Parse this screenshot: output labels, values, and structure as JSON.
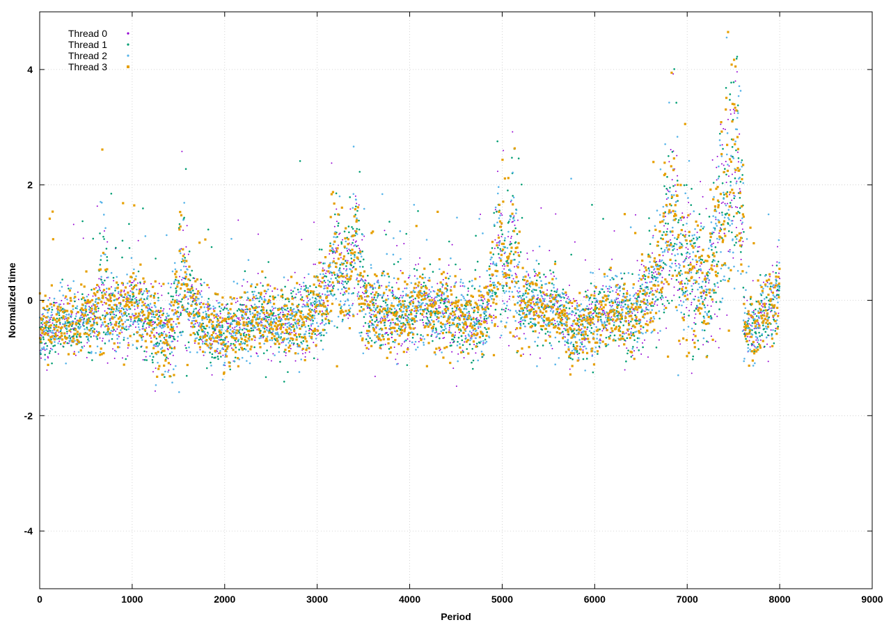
{
  "chart_data": {
    "type": "scatter",
    "xlabel": "Period",
    "ylabel": "Normalized time",
    "xlim": [
      0,
      9000
    ],
    "ylim": [
      -5,
      5
    ],
    "x_ticks": [
      0,
      1000,
      2000,
      3000,
      4000,
      5000,
      6000,
      7000,
      8000,
      9000
    ],
    "y_ticks": [
      -4,
      -2,
      0,
      2,
      4
    ],
    "grid": true,
    "legend_position": "top-left",
    "point_style": "dots",
    "series": [
      {
        "name": "Thread 0",
        "color": "#9400d3",
        "marker": "plus"
      },
      {
        "name": "Thread 1",
        "color": "#009e73",
        "marker": "cross"
      },
      {
        "name": "Thread 2",
        "color": "#56b4e9",
        "marker": "star"
      },
      {
        "name": "Thread 3",
        "color": "#e69f00",
        "marker": "square"
      }
    ],
    "profile": {
      "x": [
        0,
        100,
        200,
        400,
        600,
        700,
        750,
        900,
        1000,
        1200,
        1400,
        1550,
        1650,
        1800,
        2000,
        2300,
        2600,
        2900,
        3100,
        3200,
        3300,
        3420,
        3550,
        3800,
        4100,
        4400,
        4700,
        4850,
        4950,
        5050,
        5120,
        5200,
        5400,
        5600,
        5800,
        6000,
        6200,
        6400,
        6550,
        6700,
        6850,
        6950,
        7050,
        7200,
        7350,
        7450,
        7550,
        7600,
        7620,
        7700,
        7800,
        7900,
        8000
      ],
      "median": [
        -0.6,
        -0.5,
        -0.4,
        -0.4,
        -0.3,
        0.2,
        -0.2,
        -0.3,
        0.0,
        -0.4,
        -0.6,
        0.3,
        -0.2,
        -0.5,
        -0.6,
        -0.3,
        -0.4,
        -0.3,
        0.1,
        0.6,
        0.3,
        0.9,
        -0.2,
        -0.3,
        -0.1,
        -0.2,
        -0.4,
        -0.2,
        0.9,
        0.5,
        1.0,
        -0.1,
        -0.1,
        -0.2,
        -0.6,
        -0.3,
        -0.2,
        -0.3,
        0.0,
        0.3,
        1.5,
        0.5,
        0.5,
        0.2,
        1.3,
        2.0,
        2.2,
        1.2,
        -0.4,
        -0.5,
        -0.3,
        -0.1,
        0.2
      ],
      "spread": [
        0.35,
        0.35,
        0.35,
        0.35,
        0.4,
        0.9,
        0.4,
        0.4,
        0.5,
        0.45,
        0.45,
        1.0,
        0.45,
        0.4,
        0.4,
        0.4,
        0.45,
        0.45,
        0.5,
        0.9,
        0.6,
        0.9,
        0.45,
        0.45,
        0.45,
        0.45,
        0.4,
        0.45,
        0.9,
        0.7,
        1.1,
        0.45,
        0.45,
        0.4,
        0.4,
        0.45,
        0.45,
        0.4,
        0.5,
        0.7,
        1.3,
        0.9,
        0.9,
        0.7,
        1.1,
        1.4,
        1.4,
        1.0,
        0.4,
        0.4,
        0.45,
        0.45,
        0.5
      ]
    }
  }
}
